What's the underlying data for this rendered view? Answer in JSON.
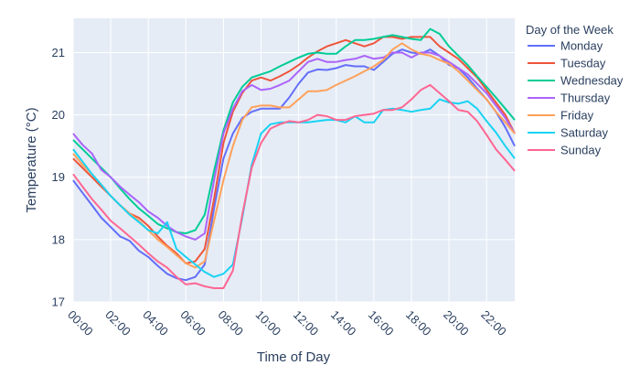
{
  "chart_data": {
    "type": "line",
    "xlabel": "Time of Day",
    "ylabel": "Temperature (°C)",
    "ylim": [
      17,
      21.55
    ],
    "y_ticks": [
      17,
      18,
      19,
      20,
      21
    ],
    "x_ticks": [
      "00:00",
      "02:00",
      "04:00",
      "06:00",
      "08:00",
      "10:00",
      "12:00",
      "14:00",
      "16:00",
      "18:00",
      "20:00",
      "22:00"
    ],
    "grid": true,
    "legend_title": "Day of the Week",
    "legend_position": "right",
    "background_color": "#E5ECF6",
    "x": [
      "00:00",
      "00:30",
      "01:00",
      "01:30",
      "02:00",
      "02:30",
      "03:00",
      "03:30",
      "04:00",
      "04:30",
      "05:00",
      "05:30",
      "06:00",
      "06:30",
      "07:00",
      "07:30",
      "08:00",
      "08:30",
      "09:00",
      "09:30",
      "10:00",
      "10:30",
      "11:00",
      "11:30",
      "12:00",
      "12:30",
      "13:00",
      "13:30",
      "14:00",
      "14:30",
      "15:00",
      "15:30",
      "16:00",
      "16:30",
      "17:00",
      "17:30",
      "18:00",
      "18:30",
      "19:00",
      "19:30",
      "20:00",
      "20:30",
      "21:00",
      "21:30",
      "22:00",
      "22:30",
      "23:00",
      "23:30"
    ],
    "series": [
      {
        "name": "Monday",
        "color": "#636EFA",
        "values": [
          18.95,
          18.75,
          18.55,
          18.35,
          18.2,
          18.05,
          17.98,
          17.82,
          17.72,
          17.58,
          17.45,
          17.38,
          17.35,
          17.4,
          17.6,
          18.5,
          19.3,
          19.7,
          19.95,
          20.05,
          20.1,
          20.1,
          20.1,
          20.28,
          20.5,
          20.68,
          20.73,
          20.72,
          20.75,
          20.8,
          20.78,
          20.78,
          20.72,
          20.85,
          20.98,
          21.05,
          21.0,
          20.98,
          21.05,
          20.95,
          20.8,
          20.75,
          20.6,
          20.42,
          20.25,
          20.05,
          19.8,
          19.5
        ]
      },
      {
        "name": "Tuesday",
        "color": "#EF553B",
        "values": [
          19.3,
          19.15,
          19.0,
          18.85,
          18.7,
          18.55,
          18.42,
          18.35,
          18.22,
          18.05,
          17.9,
          17.78,
          17.62,
          17.65,
          17.85,
          18.65,
          19.55,
          20.05,
          20.35,
          20.55,
          20.6,
          20.55,
          20.62,
          20.7,
          20.8,
          20.92,
          21.02,
          21.1,
          21.15,
          21.2,
          21.15,
          21.1,
          21.15,
          21.25,
          21.25,
          21.22,
          21.25,
          21.25,
          21.25,
          21.1,
          21.0,
          20.9,
          20.75,
          20.6,
          20.4,
          20.2,
          20.0,
          19.7
        ]
      },
      {
        "name": "Wednesday",
        "color": "#00CC96",
        "values": [
          19.6,
          19.45,
          19.3,
          19.15,
          19.0,
          18.82,
          18.65,
          18.5,
          18.38,
          18.25,
          18.18,
          18.12,
          18.1,
          18.15,
          18.4,
          19.1,
          19.75,
          20.2,
          20.45,
          20.6,
          20.65,
          20.7,
          20.78,
          20.85,
          20.92,
          20.98,
          21.0,
          20.98,
          20.98,
          21.1,
          21.2,
          21.2,
          21.22,
          21.25,
          21.28,
          21.25,
          21.22,
          21.2,
          21.38,
          21.3,
          21.1,
          20.95,
          20.8,
          20.62,
          20.45,
          20.28,
          20.1,
          19.92
        ]
      },
      {
        "name": "Thursday",
        "color": "#AB63FA",
        "values": [
          19.7,
          19.52,
          19.38,
          19.12,
          19.0,
          18.85,
          18.72,
          18.6,
          18.45,
          18.35,
          18.22,
          18.12,
          18.05,
          18.0,
          18.1,
          18.95,
          19.7,
          20.1,
          20.38,
          20.48,
          20.4,
          20.42,
          20.48,
          20.55,
          20.7,
          20.85,
          20.9,
          20.85,
          20.85,
          20.88,
          20.9,
          20.95,
          20.9,
          20.92,
          21.0,
          21.0,
          20.92,
          21.0,
          21.0,
          20.95,
          20.85,
          20.75,
          20.65,
          20.5,
          20.35,
          20.15,
          19.95,
          19.7
        ]
      },
      {
        "name": "Friday",
        "color": "#FFA15A",
        "values": [
          19.38,
          19.2,
          19.05,
          18.88,
          18.7,
          18.55,
          18.42,
          18.3,
          18.15,
          18.0,
          17.88,
          17.75,
          17.62,
          17.55,
          17.65,
          18.3,
          18.95,
          19.5,
          19.92,
          20.12,
          20.15,
          20.15,
          20.12,
          20.12,
          20.25,
          20.38,
          20.38,
          20.4,
          20.48,
          20.55,
          20.62,
          20.7,
          20.78,
          20.88,
          21.05,
          21.15,
          21.05,
          20.98,
          20.95,
          20.88,
          20.82,
          20.7,
          20.55,
          20.4,
          20.25,
          20.05,
          19.88,
          19.7
        ]
      },
      {
        "name": "Saturday",
        "color": "#19D3F3",
        "values": [
          19.45,
          19.25,
          19.05,
          18.88,
          18.7,
          18.55,
          18.4,
          18.28,
          18.15,
          18.1,
          18.28,
          17.85,
          17.72,
          17.6,
          17.48,
          17.4,
          17.45,
          17.6,
          18.35,
          19.2,
          19.7,
          19.85,
          19.88,
          19.88,
          19.88,
          19.88,
          19.9,
          19.92,
          19.92,
          19.88,
          19.98,
          19.88,
          19.88,
          20.08,
          20.1,
          20.08,
          20.05,
          20.08,
          20.1,
          20.25,
          20.2,
          20.18,
          20.22,
          20.1,
          19.9,
          19.72,
          19.5,
          19.3
        ]
      },
      {
        "name": "Sunday",
        "color": "#FF6692",
        "values": [
          19.05,
          18.85,
          18.65,
          18.48,
          18.3,
          18.18,
          18.05,
          17.92,
          17.78,
          17.65,
          17.55,
          17.4,
          17.28,
          17.3,
          17.25,
          17.22,
          17.22,
          17.5,
          18.4,
          19.15,
          19.55,
          19.78,
          19.85,
          19.9,
          19.88,
          19.92,
          20.0,
          19.98,
          19.92,
          19.92,
          19.98,
          20.0,
          20.02,
          20.08,
          20.08,
          20.12,
          20.25,
          20.4,
          20.48,
          20.35,
          20.22,
          20.08,
          20.05,
          19.9,
          19.68,
          19.45,
          19.28,
          19.1
        ]
      }
    ]
  }
}
